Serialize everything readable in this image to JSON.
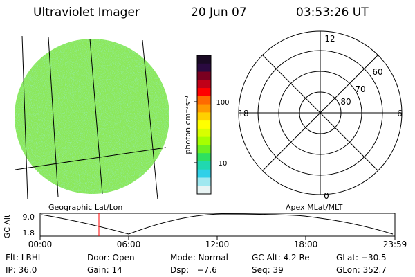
{
  "header": {
    "title": "Ultraviolet Imager",
    "date": "20 Jun 07",
    "time": "03:53:26 UT"
  },
  "colorbar": {
    "label": "photon cm⁻²s⁻¹",
    "ticks": [
      "100",
      "10"
    ],
    "scale": "log",
    "colors": [
      "#1a0a24",
      "#2a0a40",
      "#7a0020",
      "#c00018",
      "#ff0000",
      "#ff6a00",
      "#ff9a00",
      "#ffd000",
      "#ffff00",
      "#d8ff00",
      "#a6ff00",
      "#6cf020",
      "#2ee060",
      "#20d8b0",
      "#30d0e8",
      "#a0e8f0",
      "#e8f4f4"
    ]
  },
  "left_panel": {
    "label": "Geographic Lat/Lon",
    "fill_color": "#8ce85a"
  },
  "right_panel": {
    "label": "Apex MLat/MLT",
    "mlt_labels": [
      "12",
      "18",
      "6",
      "0"
    ],
    "lat_labels": [
      "60",
      "70",
      "80"
    ]
  },
  "altitude_plot": {
    "ylabel": "GC Alt",
    "ticks_y": [
      "9.0",
      "1.8"
    ],
    "ticks_x": [
      "00:00",
      "06:00",
      "12:00",
      "18:00",
      "23:59"
    ],
    "current_marker_time": "03:53:26"
  },
  "footer": {
    "row1": {
      "filter": "Flt: LBHL",
      "door": "Door: Open",
      "mode": "Mode: Normal",
      "gc_alt": "GC Alt: 4.2 Re",
      "glat": "GLat: −30.5"
    },
    "row2": {
      "ip": "IP: 36.0",
      "gain": "Gain: 14",
      "dsp": "Dsp:   −7.6",
      "seq": "Seq: 39",
      "glon": "GLon: 352.7"
    }
  }
}
